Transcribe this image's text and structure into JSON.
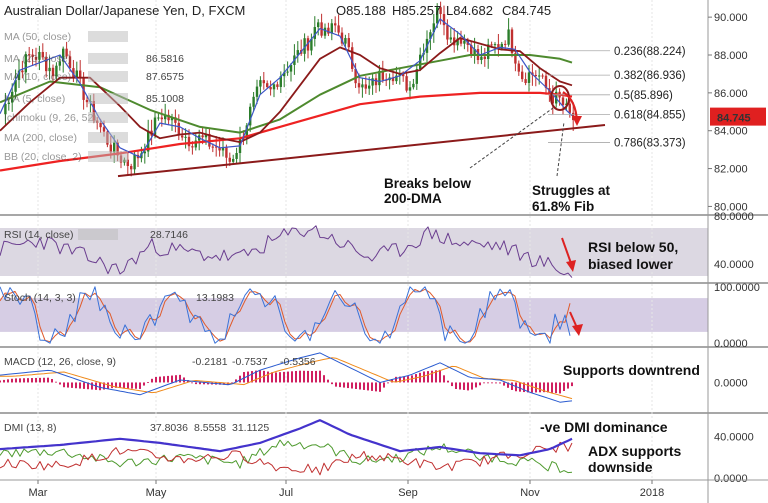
{
  "header": {
    "symbol": "Australian Dollar/Japanese Yen, D, FXCM",
    "o": "O85.188",
    "h": "H85.257",
    "l": "L84.682",
    "c": "C84.745",
    "last_price": "84.745"
  },
  "indicator_labels": [
    {
      "key": "ma50",
      "label": "MA (50, close)",
      "value": ""
    },
    {
      "key": "ma20",
      "label": "MA (20, close)",
      "value": "86.5816"
    },
    {
      "key": "ma10",
      "label": "MA (10, close)",
      "value": "87.6575"
    },
    {
      "key": "ma5",
      "label": "MA (5, close)",
      "value": "85.1008"
    },
    {
      "key": "ichimoku",
      "label": "Ichimoku (9, 26, 52)",
      "value": ""
    },
    {
      "key": "ma200",
      "label": "MA (200, close)",
      "value": ""
    },
    {
      "key": "bb",
      "label": "BB (20, close, 2)",
      "value": ""
    }
  ],
  "colors": {
    "candle_up": "#2a7d2a",
    "candle_down": "#c03030",
    "ma5": "#3b55c8",
    "ma20": "#8b1a1a",
    "ma50": "#4e8a2e",
    "ma200": "#ee2222",
    "trendline": "#8b1a1a",
    "price_badge": "#e02020",
    "rsi": "#6a3d8f",
    "stoch_k": "#3a72d8",
    "stoch_d": "#e05a2a",
    "macd": "#2a5bd0",
    "signal": "#ef8a1a",
    "hist": "#d02060",
    "adx": "#4433cc",
    "dip": "#4e9a2e",
    "dim": "#c03030",
    "arrow": "#dd2222"
  },
  "chart_data": [
    {
      "panel": "price",
      "type": "candlestick",
      "x_labels": [
        "Mar",
        "May",
        "Jul",
        "Sep",
        "Nov",
        "2018"
      ],
      "ylim": [
        79.6,
        90.8
      ],
      "yticks": [
        "80.000",
        "82.000",
        "84.000",
        "86.000",
        "88.000",
        "90.000"
      ],
      "close_path": [
        [
          0,
          84.6
        ],
        [
          10,
          86.0
        ],
        [
          20,
          87.3
        ],
        [
          30,
          88.0
        ],
        [
          40,
          87.9
        ],
        [
          55,
          87.0
        ],
        [
          62,
          88.4
        ],
        [
          70,
          87.6
        ],
        [
          80,
          86.4
        ],
        [
          90,
          85.2
        ],
        [
          100,
          84.2
        ],
        [
          110,
          83.2
        ],
        [
          120,
          82.6
        ],
        [
          130,
          82.2
        ],
        [
          140,
          82.8
        ],
        [
          150,
          83.8
        ],
        [
          160,
          84.9
        ],
        [
          170,
          84.6
        ],
        [
          180,
          84.0
        ],
        [
          190,
          83.5
        ],
        [
          200,
          83.6
        ],
        [
          210,
          83.3
        ],
        [
          220,
          83.0
        ],
        [
          230,
          82.4
        ],
        [
          240,
          83.4
        ],
        [
          250,
          85.0
        ],
        [
          260,
          86.3
        ],
        [
          270,
          86.0
        ],
        [
          280,
          87.0
        ],
        [
          290,
          87.5
        ],
        [
          300,
          88.2
        ],
        [
          310,
          88.8
        ],
        [
          318,
          89.8
        ],
        [
          325,
          89.0
        ],
        [
          335,
          89.5
        ],
        [
          345,
          88.7
        ],
        [
          355,
          87.0
        ],
        [
          365,
          86.0
        ],
        [
          372,
          86.4
        ],
        [
          380,
          86.9
        ],
        [
          390,
          87.2
        ],
        [
          400,
          86.7
        ],
        [
          410,
          86.3
        ],
        [
          420,
          88.0
        ],
        [
          430,
          89.4
        ],
        [
          440,
          90.6
        ],
        [
          450,
          88.8
        ],
        [
          460,
          89.0
        ],
        [
          470,
          88.5
        ],
        [
          480,
          87.6
        ],
        [
          490,
          88.3
        ],
        [
          500,
          88.6
        ],
        [
          508,
          89.1
        ],
        [
          515,
          88.0
        ],
        [
          522,
          86.9
        ],
        [
          530,
          87.0
        ],
        [
          538,
          87.0
        ],
        [
          545,
          86.3
        ],
        [
          552,
          85.8
        ],
        [
          560,
          85.6
        ],
        [
          566,
          85.1
        ],
        [
          572,
          84.6
        ]
      ],
      "ma5": [
        [
          0,
          84.9
        ],
        [
          20,
          87.2
        ],
        [
          40,
          87.6
        ],
        [
          60,
          88.0
        ],
        [
          80,
          86.5
        ],
        [
          100,
          84.6
        ],
        [
          120,
          83.1
        ],
        [
          140,
          82.6
        ],
        [
          160,
          84.4
        ],
        [
          180,
          84.2
        ],
        [
          200,
          83.6
        ],
        [
          220,
          83.1
        ],
        [
          240,
          83.2
        ],
        [
          260,
          85.9
        ],
        [
          280,
          86.8
        ],
        [
          300,
          88.1
        ],
        [
          320,
          89.4
        ],
        [
          340,
          89.0
        ],
        [
          360,
          86.8
        ],
        [
          380,
          86.6
        ],
        [
          400,
          86.9
        ],
        [
          420,
          87.7
        ],
        [
          440,
          89.9
        ],
        [
          460,
          89.1
        ],
        [
          480,
          88.0
        ],
        [
          500,
          88.4
        ],
        [
          515,
          88.3
        ],
        [
          530,
          87.1
        ],
        [
          550,
          86.1
        ],
        [
          566,
          85.1
        ],
        [
          572,
          84.8
        ]
      ],
      "ma20": [
        [
          0,
          84.0
        ],
        [
          30,
          85.5
        ],
        [
          60,
          86.8
        ],
        [
          90,
          86.8
        ],
        [
          120,
          85.3
        ],
        [
          140,
          84.2
        ],
        [
          160,
          83.6
        ],
        [
          180,
          83.8
        ],
        [
          200,
          83.9
        ],
        [
          220,
          83.6
        ],
        [
          240,
          83.4
        ],
        [
          260,
          83.9
        ],
        [
          280,
          85.0
        ],
        [
          300,
          86.4
        ],
        [
          320,
          87.8
        ],
        [
          340,
          88.4
        ],
        [
          360,
          88.0
        ],
        [
          380,
          87.3
        ],
        [
          400,
          87.0
        ],
        [
          420,
          87.2
        ],
        [
          440,
          88.1
        ],
        [
          460,
          88.9
        ],
        [
          480,
          88.6
        ],
        [
          500,
          88.3
        ],
        [
          520,
          88.2
        ],
        [
          540,
          87.3
        ],
        [
          560,
          86.6
        ],
        [
          572,
          86.4
        ]
      ],
      "ma50": [
        [
          0,
          85.5
        ],
        [
          50,
          86.6
        ],
        [
          100,
          86.3
        ],
        [
          150,
          85.1
        ],
        [
          200,
          84.2
        ],
        [
          240,
          83.9
        ],
        [
          280,
          84.6
        ],
        [
          320,
          85.9
        ],
        [
          360,
          86.9
        ],
        [
          400,
          87.3
        ],
        [
          440,
          87.7
        ],
        [
          470,
          88.0
        ],
        [
          500,
          88.0
        ],
        [
          530,
          88.0
        ],
        [
          560,
          87.8
        ],
        [
          572,
          87.6
        ]
      ],
      "ma200": [
        [
          0,
          81.9
        ],
        [
          60,
          82.4
        ],
        [
          120,
          82.8
        ],
        [
          180,
          83.3
        ],
        [
          240,
          83.6
        ],
        [
          300,
          84.5
        ],
        [
          360,
          85.4
        ],
        [
          420,
          85.8
        ],
        [
          480,
          86.0
        ],
        [
          540,
          86.0
        ],
        [
          560,
          85.9
        ],
        [
          572,
          85.8
        ]
      ],
      "trendline": [
        [
          118,
          81.6
        ],
        [
          605,
          84.3
        ]
      ],
      "fib_levels": [
        {
          "label": "0.236(88.224)",
          "value": 88.224
        },
        {
          "label": "0.382(86.936)",
          "value": 86.936
        },
        {
          "label": "0.5(85.896)",
          "value": 85.896
        },
        {
          "label": "0.618(84.855)",
          "value": 84.855
        },
        {
          "label": "0.786(83.373)",
          "value": 83.373
        }
      ],
      "annotations": [
        {
          "text": "Breaks below",
          "text2": "200-DMA"
        },
        {
          "text": "Struggles at",
          "text2": "61.8% Fib"
        }
      ]
    },
    {
      "panel": "rsi",
      "type": "line",
      "label": "RSI (14, close)",
      "value": "28.7146",
      "ylim": [
        25,
        80
      ],
      "yticks": [
        "40.0000",
        "80.0000"
      ],
      "annotation": "RSI below 50,",
      "annotation2": "biased lower"
    },
    {
      "panel": "stoch",
      "type": "line",
      "label": "Stoch (14, 3, 3)",
      "value": "13.1983",
      "ylim": [
        -5,
        105
      ],
      "yticks": [
        "0.0000",
        "100.0000"
      ]
    },
    {
      "panel": "macd",
      "type": "line",
      "label": "MACD (12, 26, close, 9)",
      "values": [
        "-0.2181",
        "-0.7537",
        "-0.5356"
      ],
      "ylim": [
        -1.2,
        1.4
      ],
      "yticks": [
        "0.0000"
      ],
      "annotation": "Supports downtrend"
    },
    {
      "panel": "dmi",
      "type": "line",
      "label": "DMI (13, 8)",
      "values": [
        "37.8036",
        "8.5558",
        "31.1125"
      ],
      "ylim": [
        0,
        62
      ],
      "yticks": [
        "0.0000",
        "40.0000"
      ],
      "annotation": "-ve DMI dominance",
      "annotation2": "ADX supports",
      "annotation3": "downside"
    }
  ]
}
